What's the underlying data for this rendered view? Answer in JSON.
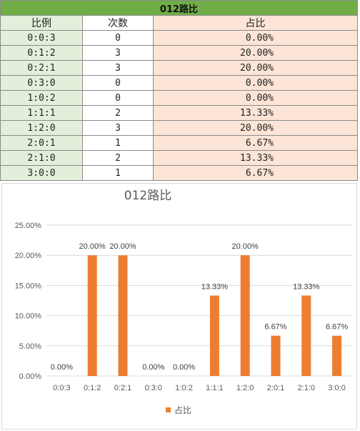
{
  "table": {
    "title": "012路比",
    "headers": [
      "比例",
      "次数",
      "占比"
    ],
    "rows": [
      {
        "ratio": "0:0:3",
        "count": "0",
        "pct": "0.00%"
      },
      {
        "ratio": "0:1:2",
        "count": "3",
        "pct": "20.00%"
      },
      {
        "ratio": "0:2:1",
        "count": "3",
        "pct": "20.00%"
      },
      {
        "ratio": "0:3:0",
        "count": "0",
        "pct": "0.00%"
      },
      {
        "ratio": "1:0:2",
        "count": "0",
        "pct": "0.00%"
      },
      {
        "ratio": "1:1:1",
        "count": "2",
        "pct": "13.33%"
      },
      {
        "ratio": "1:2:0",
        "count": "3",
        "pct": "20.00%"
      },
      {
        "ratio": "2:0:1",
        "count": "1",
        "pct": "6.67%"
      },
      {
        "ratio": "2:1:0",
        "count": "2",
        "pct": "13.33%"
      },
      {
        "ratio": "3:0:0",
        "count": "1",
        "pct": "6.67%"
      }
    ]
  },
  "colors": {
    "title_bg": "#70ad47",
    "ratio_bg": "#e2efda",
    "pct_bg": "#fce4d6",
    "bar": "#ed7d31",
    "grid": "#d9d9d9"
  },
  "chart_data": {
    "type": "bar",
    "title": "012路比",
    "categories": [
      "0:0:3",
      "0:1:2",
      "0:2:1",
      "0:3:0",
      "1:0:2",
      "1:1:1",
      "1:2:0",
      "2:0:1",
      "2:1:0",
      "3:0:0"
    ],
    "series": [
      {
        "name": "占比",
        "values": [
          0.0,
          20.0,
          20.0,
          0.0,
          0.0,
          13.33,
          20.0,
          6.67,
          13.33,
          6.67
        ],
        "labels": [
          "0.00%",
          "20.00%",
          "20.00%",
          "0.00%",
          "0.00%",
          "13.33%",
          "20.00%",
          "6.67%",
          "13.33%",
          "6.67%"
        ]
      }
    ],
    "ylim": [
      0,
      25
    ],
    "yticks": [
      "0.00%",
      "5.00%",
      "10.00%",
      "15.00%",
      "20.00%",
      "25.00%"
    ],
    "grid": true,
    "legend": "bottom"
  }
}
